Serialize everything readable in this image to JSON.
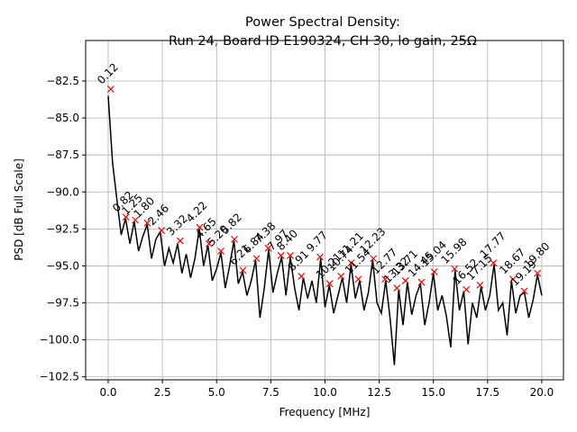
{
  "chart_data": {
    "type": "line",
    "title": "Power Spectral Density:",
    "subtitle": "Run 24, Board ID E190324, CH 30, lo gain, 25Ω",
    "xlabel": "Frequency [MHz]",
    "ylabel": "PSD [dB Full Scale]",
    "xlim": [
      -1.04,
      21.0
    ],
    "ylim": [
      -102.7,
      -79.76
    ],
    "xticks": [
      {
        "value": 0,
        "label": "0.0"
      },
      2.5,
      {
        "value": 5,
        "label": "5.0"
      },
      7.5,
      {
        "value": 10,
        "label": "10.0"
      },
      12.5,
      {
        "value": 15,
        "label": "15.0"
      },
      17.5,
      {
        "value": 20,
        "label": "20.0"
      }
    ],
    "yticks": [
      {
        "value": -102.5,
        "label": "−102.5"
      },
      {
        "value": -100,
        "label": "−100.0"
      },
      {
        "value": -97.5,
        "label": "−97.5"
      },
      {
        "value": -95,
        "label": "−95.0"
      },
      {
        "value": -92.5,
        "label": "−92.5"
      },
      {
        "value": -90,
        "label": "−90.0"
      },
      {
        "value": -87.5,
        "label": "−87.5"
      },
      {
        "value": -85,
        "label": "−85.0"
      },
      {
        "value": -82.5,
        "label": "−82.5"
      }
    ],
    "grid": true,
    "series": [
      {
        "color": "#000000",
        "x": [
          0,
          0.2,
          0.4,
          0.6,
          0.8,
          1,
          1.2,
          1.4,
          1.6,
          1.8,
          2,
          2.2,
          2.4,
          2.6,
          2.8,
          3,
          3.2,
          3.4,
          3.6,
          3.8,
          4,
          4.2,
          4.4,
          4.6,
          4.8,
          5,
          5.2,
          5.4,
          5.6,
          5.8,
          6,
          6.2,
          6.4,
          6.6,
          6.8,
          7,
          7.2,
          7.4,
          7.6,
          7.8,
          8,
          8.2,
          8.4,
          8.6,
          8.8,
          9,
          9.2,
          9.4,
          9.6,
          9.8,
          10,
          10.2,
          10.4,
          10.6,
          10.8,
          11,
          11.2,
          11.4,
          11.6,
          11.8,
          12,
          12.2,
          12.4,
          12.6,
          12.8,
          13,
          13.2,
          13.4,
          13.6,
          13.8,
          14,
          14.2,
          14.4,
          14.6,
          14.8,
          15,
          15.2,
          15.4,
          15.6,
          15.8,
          16,
          16.2,
          16.4,
          16.6,
          16.8,
          17,
          17.2,
          17.4,
          17.6,
          17.8,
          18,
          18.2,
          18.4,
          18.6,
          18.8,
          19,
          19.2,
          19.4,
          19.6,
          19.8,
          20
        ],
        "values": [
          -83.5,
          -88.0,
          -90.5,
          -92.9,
          -91.8,
          -93.5,
          -92.0,
          -94.0,
          -93.0,
          -92.2,
          -94.5,
          -93.2,
          -92.7,
          -95.0,
          -93.8,
          -94.8,
          -93.5,
          -95.5,
          -94.2,
          -95.8,
          -94.5,
          -92.5,
          -95.0,
          -93.6,
          -96.0,
          -95.2,
          -94.1,
          -96.5,
          -95.0,
          -93.3,
          -96.2,
          -95.4,
          -97.0,
          -96.0,
          -94.6,
          -98.5,
          -96.5,
          -93.9,
          -96.8,
          -95.5,
          -94.4,
          -97.0,
          -94.4,
          -96.5,
          -98.0,
          -95.8,
          -97.2,
          -96.0,
          -97.5,
          -94.5,
          -97.8,
          -96.3,
          -98.2,
          -97.0,
          -95.8,
          -97.5,
          -94.9,
          -97.2,
          -96.0,
          -98.0,
          -96.8,
          -94.6,
          -97.5,
          -98.2,
          -96.0,
          -98.5,
          -101.7,
          -96.6,
          -99.0,
          -96.1,
          -98.3,
          -97.0,
          -96.2,
          -99.0,
          -97.5,
          -95.5,
          -98.0,
          -97.0,
          -98.4,
          -100.5,
          -95.3,
          -98.0,
          -96.7,
          -100.3,
          -97.5,
          -98.5,
          -96.4,
          -98.0,
          -97.0,
          -94.9,
          -98.0,
          -97.5,
          -99.7,
          -96.0,
          -98.2,
          -97.0,
          -96.8,
          -98.5,
          -97.3,
          -95.6,
          -97.0
        ]
      }
    ],
    "peaks": {
      "color": "#ff0000",
      "x": [
        0.12,
        0.82,
        1.25,
        1.8,
        2.46,
        3.32,
        4.22,
        4.65,
        5.2,
        5.82,
        6.21,
        6.84,
        7.38,
        7.97,
        8.4,
        8.91,
        9.77,
        10.21,
        10.74,
        11.21,
        11.54,
        12.23,
        12.77,
        13.32,
        13.71,
        14.45,
        15.04,
        15.98,
        16.52,
        17.15,
        17.77,
        18.67,
        19.19,
        19.8
      ],
      "values": [
        -83.05,
        -91.7,
        -91.9,
        -92.1,
        -92.6,
        -93.3,
        -92.4,
        -93.5,
        -94.0,
        -93.2,
        -95.3,
        -94.5,
        -93.8,
        -94.3,
        -94.3,
        -95.7,
        -94.4,
        -96.2,
        -95.7,
        -94.8,
        -95.9,
        -94.5,
        -95.9,
        -96.5,
        -96.0,
        -96.1,
        -95.4,
        -95.2,
        -96.6,
        -96.3,
        -94.8,
        -95.9,
        -96.7,
        -95.5
      ],
      "labels": [
        "0.12",
        "0.82",
        "1.25",
        "1.80",
        "2.46",
        "3.32",
        "4.22",
        "4.65",
        "5.20",
        "5.82",
        "6.21",
        "6.84",
        "7.38",
        "7.97",
        "8.40",
        "8.91",
        "9.77",
        "10.21",
        "10.74",
        "11.21",
        "11.54",
        "12.23",
        "12.77",
        "13.32",
        "13.71",
        "14.45",
        "15.04",
        "15.98",
        "16.52",
        "17.15",
        "17.77",
        "18.67",
        "19.19",
        "19.80"
      ]
    }
  }
}
